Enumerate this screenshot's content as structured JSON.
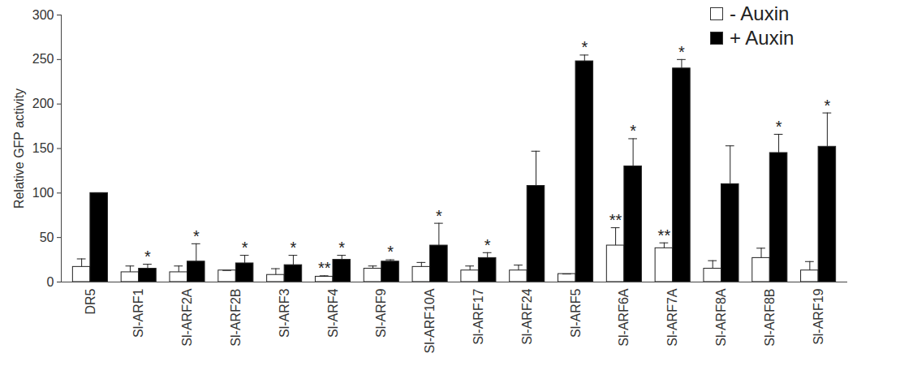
{
  "chart_data": {
    "type": "bar",
    "y_label": "Relative GFP activity",
    "categories": [
      "DR5",
      "Sl-ARF1",
      "Sl-ARF2A",
      "Sl-ARF2B",
      "Sl-ARF3",
      "Sl-ARF4",
      "Sl-ARF9",
      "Sl-ARF10A",
      "Sl-ARF17",
      "Sl-ARF24",
      "Sl-ARF5",
      "Sl-ARF6A",
      "Sl-ARF7A",
      "Sl-ARF8A",
      "Sl-ARF8B",
      "Sl-ARF19"
    ],
    "series": [
      {
        "name": "- Auxin",
        "color": "#ffffff",
        "values": [
          17,
          11,
          11,
          13,
          8,
          6,
          15,
          17,
          13,
          13,
          9,
          41,
          38,
          15,
          27,
          13
        ],
        "errors": [
          9,
          7,
          7,
          0,
          7,
          1,
          3,
          5,
          5,
          6,
          0,
          20,
          6,
          9,
          11,
          10
        ],
        "significance": [
          null,
          null,
          null,
          null,
          null,
          "**",
          null,
          null,
          null,
          null,
          null,
          "**",
          "**",
          null,
          null,
          null
        ]
      },
      {
        "name": "+ Auxin",
        "color": "#000000",
        "values": [
          100,
          15,
          23,
          21,
          19,
          25,
          23,
          41,
          27,
          108,
          248,
          130,
          240,
          110,
          145,
          152
        ],
        "errors": [
          0,
          5,
          20,
          9,
          11,
          5,
          2,
          25,
          6,
          39,
          7,
          31,
          10,
          43,
          21,
          38
        ],
        "significance": [
          null,
          "*",
          "*",
          "*",
          "*",
          "*",
          "*",
          "*",
          "*",
          null,
          "*",
          "*",
          "*",
          null,
          "*",
          "*"
        ]
      }
    ],
    "ylim": [
      0,
      300
    ],
    "yticks": [
      0,
      50,
      100,
      150,
      200,
      250,
      300
    ],
    "grid": false,
    "legend": "top-right"
  }
}
